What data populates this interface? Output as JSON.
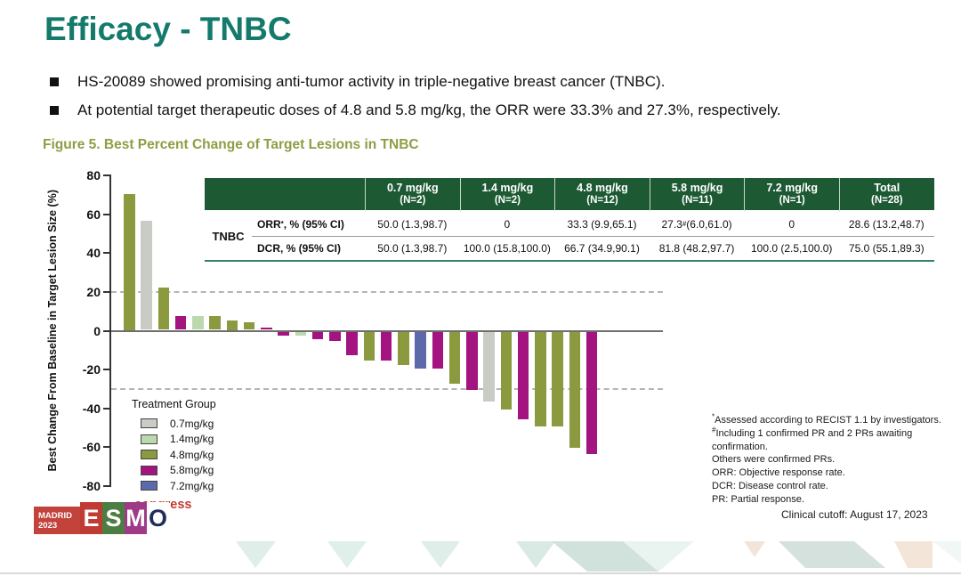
{
  "colors": {
    "title_teal": "#137a6c",
    "caption_olive": "#8c9e43",
    "table_header_green": "#1d5a34",
    "table_underline": "#35806e"
  },
  "title": "Efficacy - TNBC",
  "bullets": [
    "HS-20089 showed promising anti-tumor activity in triple-negative breast cancer (TNBC).",
    "At potential target therapeutic doses of 4.8 and 5.8 mg/kg, the ORR were 33.3% and 27.3%, respectively."
  ],
  "figure_caption": "Figure 5. Best Percent Change of Target Lesions in TNBC",
  "table": {
    "row_group_label": "TNBC",
    "columns": [
      {
        "dose": "0.7 mg/kg",
        "n": "(N=2)"
      },
      {
        "dose": "1.4 mg/kg",
        "n": "(N=2)"
      },
      {
        "dose": "4.8 mg/kg",
        "n": "(N=12)"
      },
      {
        "dose": "5.8 mg/kg",
        "n": "(N=11)"
      },
      {
        "dose": "7.2 mg/kg",
        "n": "(N=1)"
      },
      {
        "dose": "Total",
        "n": "(N=28)"
      }
    ],
    "rows": [
      {
        "label": "ORR^{*}, % (95% CI)",
        "values": [
          "50.0 (1.3,98.7)",
          "0",
          "33.3 (9.9,65.1)",
          "27.3^{#} (6.0,61.0)",
          "0",
          "28.6 (13.2,48.7)"
        ]
      },
      {
        "label": "DCR, %  (95% CI)",
        "values": [
          "50.0 (1.3,98.7)",
          "100.0 (15.8,100.0)",
          "66.7 (34.9,90.1)",
          "81.8 (48.2,97.7)",
          "100.0 (2.5,100.0)",
          "75.0 (55.1,89.3)"
        ]
      }
    ]
  },
  "chart_data": {
    "type": "bar",
    "subtype": "waterfall",
    "title": "Best Percent Change of Target Lesions in TNBC",
    "ylabel": "Best Change From Baseline in Target Lesion Size (%)",
    "ylim": [
      -80,
      80
    ],
    "yticks": [
      80,
      60,
      40,
      20,
      0,
      -20,
      -40,
      -60,
      -80
    ],
    "reference_lines": [
      20,
      -30
    ],
    "grid": false,
    "legend_title": "Treatment Group",
    "legend_position": "lower-left",
    "groups": [
      {
        "name": "0.7mg/kg",
        "color": "#c8ccc4"
      },
      {
        "name": "1.4mg/kg",
        "color": "#bcd9ae"
      },
      {
        "name": "4.8mg/kg",
        "color": "#8b9a3e"
      },
      {
        "name": "5.8mg/kg",
        "color": "#a31480"
      },
      {
        "name": "7.2mg/kg",
        "color": "#5c69ab"
      }
    ],
    "bars": [
      {
        "group": "4.8mg/kg",
        "value": 70
      },
      {
        "group": "0.7mg/kg",
        "value": 56
      },
      {
        "group": "4.8mg/kg",
        "value": 22
      },
      {
        "group": "5.8mg/kg",
        "value": 7
      },
      {
        "group": "1.4mg/kg",
        "value": 7
      },
      {
        "group": "4.8mg/kg",
        "value": 7
      },
      {
        "group": "4.8mg/kg",
        "value": 5
      },
      {
        "group": "4.8mg/kg",
        "value": 4
      },
      {
        "group": "5.8mg/kg",
        "value": 1
      },
      {
        "group": "5.8mg/kg",
        "value": -2
      },
      {
        "group": "1.4mg/kg",
        "value": -2
      },
      {
        "group": "5.8mg/kg",
        "value": -4
      },
      {
        "group": "5.8mg/kg",
        "value": -5
      },
      {
        "group": "5.8mg/kg",
        "value": -12
      },
      {
        "group": "4.8mg/kg",
        "value": -15
      },
      {
        "group": "5.8mg/kg",
        "value": -15
      },
      {
        "group": "4.8mg/kg",
        "value": -17
      },
      {
        "group": "7.2mg/kg",
        "value": -19
      },
      {
        "group": "5.8mg/kg",
        "value": -19
      },
      {
        "group": "4.8mg/kg",
        "value": -27
      },
      {
        "group": "5.8mg/kg",
        "value": -30
      },
      {
        "group": "0.7mg/kg",
        "value": -36
      },
      {
        "group": "4.8mg/kg",
        "value": -40
      },
      {
        "group": "5.8mg/kg",
        "value": -45
      },
      {
        "group": "4.8mg/kg",
        "value": -49
      },
      {
        "group": "4.8mg/kg",
        "value": -49
      },
      {
        "group": "4.8mg/kg",
        "value": -60
      },
      {
        "group": "5.8mg/kg",
        "value": -63
      }
    ]
  },
  "footnotes": [
    "^{*}Assessed according to RECIST 1.1 by investigators.",
    "^{#}Including 1 confirmed PR and 2 PRs awaiting confirmation.",
    "Others were confirmed PRs.",
    "ORR: Objective response rate.",
    "DCR: Disease control rate.",
    "PR: Partial response."
  ],
  "clinical_cutoff": "Clinical cutoff: August 17, 2023",
  "logo": {
    "city": "MADRID",
    "year": "2023",
    "letters": [
      "E",
      "S",
      "M",
      "O"
    ],
    "letter_colors": [
      "#bf3b33",
      "#4c7d43",
      "#9f3a88",
      "#ffffff"
    ],
    "letter_text_colors": [
      "#ffffff",
      "#ffffff",
      "#ffffff",
      "#232d5c"
    ],
    "congress": "congress"
  }
}
